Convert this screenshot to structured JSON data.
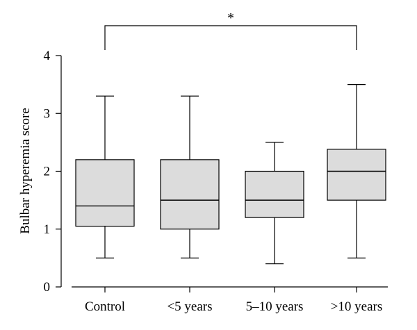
{
  "chart_data": {
    "type": "boxplot",
    "ylabel": "Bulbar hyperemia score",
    "xlabel": "",
    "ylim": [
      0,
      4
    ],
    "yticks": [
      "0",
      "1",
      "2",
      "3",
      "4"
    ],
    "categories": [
      "Control",
      "<5 years",
      "5–10 years",
      ">10 years"
    ],
    "boxes": [
      {
        "min": 0.5,
        "q1": 1.05,
        "median": 1.4,
        "q3": 2.2,
        "max": 3.3
      },
      {
        "min": 0.5,
        "q1": 1.0,
        "median": 1.5,
        "q3": 2.2,
        "max": 3.3
      },
      {
        "min": 0.4,
        "q1": 1.2,
        "median": 1.5,
        "q3": 2.0,
        "max": 2.5
      },
      {
        "min": 0.5,
        "q1": 1.5,
        "median": 2.0,
        "q3": 2.38,
        "max": 3.5
      }
    ],
    "significance": {
      "from": "Control",
      "to": ">10 years",
      "label": "*"
    },
    "grid": false,
    "colors": {
      "box_fill": "#dcdcdc",
      "line": "#000000"
    }
  }
}
